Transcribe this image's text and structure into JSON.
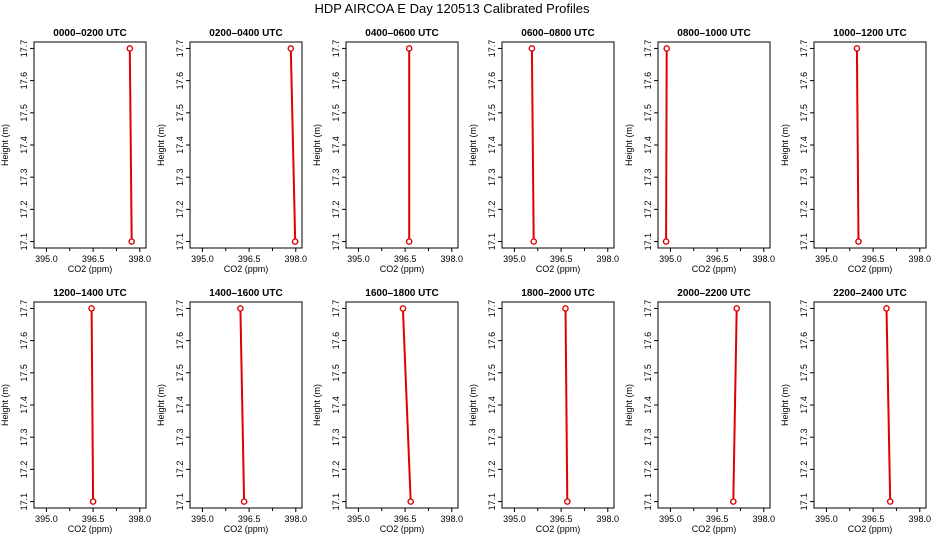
{
  "figure": {
    "title": "HDP AIRCOA E  Day 120513  Calibrated Profiles"
  },
  "chart_data": [
    {
      "type": "line",
      "title": "0000–0200 UTC",
      "xlabel": "CO2 (ppm)",
      "ylabel": "Height (m)",
      "xlim": [
        394.6,
        398.2
      ],
      "ylim": [
        17.08,
        17.72
      ],
      "xticks": [
        "395.0",
        "396.5",
        "398.0"
      ],
      "yticks": [
        "17.1",
        "17.2",
        "17.3",
        "17.4",
        "17.5",
        "17.6",
        "17.7"
      ],
      "color": "#dd0000",
      "series": [
        {
          "x": [
            397.68,
            397.74
          ],
          "y": [
            17.7,
            17.1
          ]
        }
      ]
    },
    {
      "type": "line",
      "title": "0200–0400 UTC",
      "xlabel": "CO2 (ppm)",
      "ylabel": "Height (m)",
      "xlim": [
        394.6,
        398.2
      ],
      "ylim": [
        17.08,
        17.72
      ],
      "xticks": [
        "395.0",
        "396.5",
        "398.0"
      ],
      "yticks": [
        "17.1",
        "17.2",
        "17.3",
        "17.4",
        "17.5",
        "17.6",
        "17.7"
      ],
      "color": "#dd0000",
      "series": [
        {
          "x": [
            397.84,
            397.98
          ],
          "y": [
            17.7,
            17.1
          ]
        }
      ]
    },
    {
      "type": "line",
      "title": "0400–0600 UTC",
      "xlabel": "CO2 (ppm)",
      "ylabel": "Height (m)",
      "xlim": [
        394.6,
        398.2
      ],
      "ylim": [
        17.08,
        17.72
      ],
      "xticks": [
        "395.0",
        "396.5",
        "398.0"
      ],
      "yticks": [
        "17.1",
        "17.2",
        "17.3",
        "17.4",
        "17.5",
        "17.6",
        "17.7"
      ],
      "color": "#dd0000",
      "series": [
        {
          "x": [
            396.63,
            396.63
          ],
          "y": [
            17.7,
            17.1
          ]
        }
      ]
    },
    {
      "type": "line",
      "title": "0600–0800 UTC",
      "xlabel": "CO2 (ppm)",
      "ylabel": "Height (m)",
      "xlim": [
        394.6,
        398.2
      ],
      "ylim": [
        17.08,
        17.72
      ],
      "xticks": [
        "395.0",
        "396.5",
        "398.0"
      ],
      "yticks": [
        "17.1",
        "17.2",
        "17.3",
        "17.4",
        "17.5",
        "17.6",
        "17.7"
      ],
      "color": "#dd0000",
      "series": [
        {
          "x": [
            395.56,
            395.62
          ],
          "y": [
            17.7,
            17.1
          ]
        }
      ]
    },
    {
      "type": "line",
      "title": "0800–1000 UTC",
      "xlabel": "CO2 (ppm)",
      "ylabel": "Height (m)",
      "xlim": [
        394.6,
        398.2
      ],
      "ylim": [
        17.08,
        17.72
      ],
      "xticks": [
        "395.0",
        "396.5",
        "398.0"
      ],
      "yticks": [
        "17.1",
        "17.2",
        "17.3",
        "17.4",
        "17.5",
        "17.6",
        "17.7"
      ],
      "color": "#dd0000",
      "series": [
        {
          "x": [
            394.88,
            394.86
          ],
          "y": [
            17.7,
            17.1
          ]
        }
      ]
    },
    {
      "type": "line",
      "title": "1000–1200 UTC",
      "xlabel": "CO2 (ppm)",
      "ylabel": "Height (m)",
      "xlim": [
        394.6,
        398.2
      ],
      "ylim": [
        17.08,
        17.72
      ],
      "xticks": [
        "395.0",
        "396.5",
        "398.0"
      ],
      "yticks": [
        "17.1",
        "17.2",
        "17.3",
        "17.4",
        "17.5",
        "17.6",
        "17.7"
      ],
      "color": "#dd0000",
      "series": [
        {
          "x": [
            395.98,
            396.03
          ],
          "y": [
            17.7,
            17.1
          ]
        }
      ]
    },
    {
      "type": "line",
      "title": "1200–1400 UTC",
      "xlabel": "CO2 (ppm)",
      "ylabel": "Height (m)",
      "xlim": [
        394.6,
        398.2
      ],
      "ylim": [
        17.08,
        17.72
      ],
      "xticks": [
        "395.0",
        "396.5",
        "398.0"
      ],
      "yticks": [
        "17.1",
        "17.2",
        "17.3",
        "17.4",
        "17.5",
        "17.6",
        "17.7"
      ],
      "color": "#dd0000",
      "series": [
        {
          "x": [
            396.45,
            396.5
          ],
          "y": [
            17.7,
            17.1
          ]
        }
      ]
    },
    {
      "type": "line",
      "title": "1400–1600 UTC",
      "xlabel": "CO2 (ppm)",
      "ylabel": "Height (m)",
      "xlim": [
        394.6,
        398.2
      ],
      "ylim": [
        17.08,
        17.72
      ],
      "xticks": [
        "395.0",
        "396.5",
        "398.0"
      ],
      "yticks": [
        "17.1",
        "17.2",
        "17.3",
        "17.4",
        "17.5",
        "17.6",
        "17.7"
      ],
      "color": "#dd0000",
      "series": [
        {
          "x": [
            396.22,
            396.34
          ],
          "y": [
            17.7,
            17.1
          ]
        }
      ]
    },
    {
      "type": "line",
      "title": "1600–1800 UTC",
      "xlabel": "CO2 (ppm)",
      "ylabel": "Height (m)",
      "xlim": [
        394.6,
        398.2
      ],
      "ylim": [
        17.08,
        17.72
      ],
      "xticks": [
        "395.0",
        "396.5",
        "398.0"
      ],
      "yticks": [
        "17.1",
        "17.2",
        "17.3",
        "17.4",
        "17.5",
        "17.6",
        "17.7"
      ],
      "color": "#dd0000",
      "series": [
        {
          "x": [
            396.43,
            396.68
          ],
          "y": [
            17.7,
            17.1
          ]
        }
      ]
    },
    {
      "type": "line",
      "title": "1800–2000 UTC",
      "xlabel": "CO2 (ppm)",
      "ylabel": "Height (m)",
      "xlim": [
        394.6,
        398.2
      ],
      "ylim": [
        17.08,
        17.72
      ],
      "xticks": [
        "395.0",
        "396.5",
        "398.0"
      ],
      "yticks": [
        "17.1",
        "17.2",
        "17.3",
        "17.4",
        "17.5",
        "17.6",
        "17.7"
      ],
      "color": "#dd0000",
      "series": [
        {
          "x": [
            396.64,
            396.7
          ],
          "y": [
            17.7,
            17.1
          ]
        }
      ]
    },
    {
      "type": "line",
      "title": "2000–2200 UTC",
      "xlabel": "CO2 (ppm)",
      "ylabel": "Height (m)",
      "xlim": [
        394.6,
        398.2
      ],
      "ylim": [
        17.08,
        17.72
      ],
      "xticks": [
        "395.0",
        "396.5",
        "398.0"
      ],
      "yticks": [
        "17.1",
        "17.2",
        "17.3",
        "17.4",
        "17.5",
        "17.6",
        "17.7"
      ],
      "color": "#dd0000",
      "series": [
        {
          "x": [
            397.13,
            397.02
          ],
          "y": [
            17.7,
            17.1
          ]
        }
      ]
    },
    {
      "type": "line",
      "title": "2200–2400 UTC",
      "xlabel": "CO2 (ppm)",
      "ylabel": "Height (m)",
      "xlim": [
        394.6,
        398.2
      ],
      "ylim": [
        17.08,
        17.72
      ],
      "xticks": [
        "395.0",
        "396.5",
        "398.0"
      ],
      "yticks": [
        "17.1",
        "17.2",
        "17.3",
        "17.4",
        "17.5",
        "17.6",
        "17.7"
      ],
      "color": "#dd0000",
      "series": [
        {
          "x": [
            396.93,
            397.05
          ],
          "y": [
            17.7,
            17.1
          ]
        }
      ]
    }
  ]
}
